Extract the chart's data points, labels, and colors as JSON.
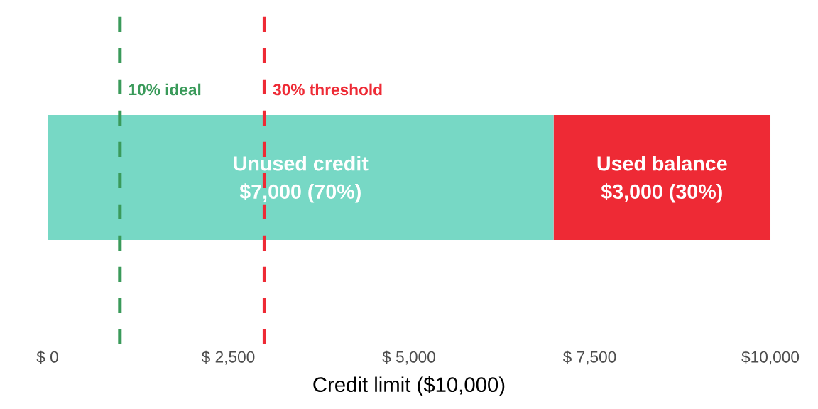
{
  "chart_data": {
    "type": "bar",
    "orientation": "horizontal",
    "stacked": true,
    "categories": [
      null
    ],
    "series": [
      {
        "name": "Unused credit",
        "color": "#77d8c5",
        "values": [
          7000
        ],
        "value_labels": [
          "$7,000 (70%)"
        ]
      },
      {
        "name": "Used balance",
        "color": "#ee2a35",
        "values": [
          3000
        ],
        "value_labels": [
          "$3,000 (30%)"
        ]
      }
    ],
    "xlabel": "Credit limit ($10,000)",
    "xlim": [
      0,
      10000
    ],
    "xticks": [
      {
        "value": 0,
        "label": "$ 0"
      },
      {
        "value": 2500,
        "label": "$ 2,500"
      },
      {
        "value": 5000,
        "label": "$ 5,000"
      },
      {
        "value": 7500,
        "label": "$ 7,500"
      },
      {
        "value": 10000,
        "label": "$10,000"
      }
    ],
    "ref_lines": [
      {
        "axis": "x",
        "value": 1000,
        "label": "10% ideal",
        "color": "#3a9a5a",
        "line_style": "dashed"
      },
      {
        "axis": "x",
        "value": 3000,
        "label": "30% threshold",
        "color": "#ee2a35",
        "line_style": "dashed"
      }
    ]
  }
}
